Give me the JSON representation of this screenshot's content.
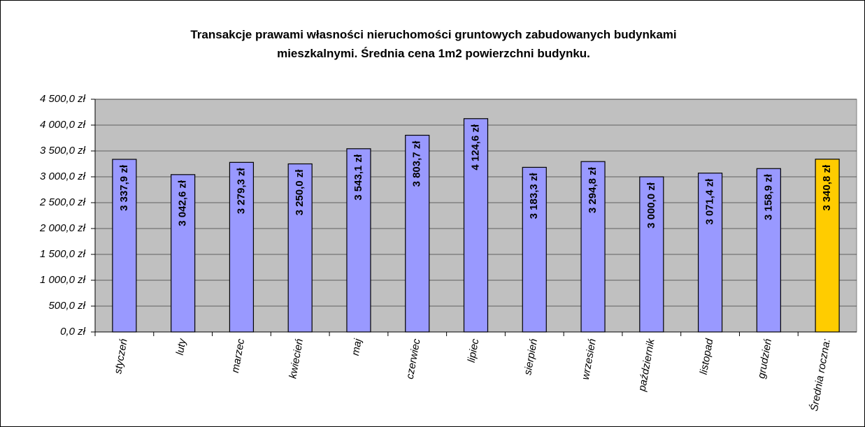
{
  "chart_data": {
    "type": "bar",
    "title": "Transakcje prawami własności nieruchomości gruntowych zabudowanych budynkami mieszkalnymi. Średnia cena 1m2 powierzchni budynku.",
    "categories": [
      "styczeń",
      "luty",
      "marzec",
      "kwiecień",
      "maj",
      "czerwiec",
      "lipiec",
      "sierpień",
      "wrzesień",
      "październik",
      "listopad",
      "grudzień",
      "Średnia roczna:"
    ],
    "values": [
      3337.9,
      3042.6,
      3279.3,
      3250.0,
      3543.1,
      3803.7,
      4124.6,
      3183.3,
      3294.8,
      3000.0,
      3071.4,
      3158.9,
      3340.8
    ],
    "value_labels": [
      "3 337,9 zł",
      "3 042,6 zł",
      "3 279,3 zł",
      "3 250,0 zł",
      "3 543,1 zł",
      "3 803,7 zł",
      "4 124,6 zł",
      "3 183,3 zł",
      "3 294,8 zł",
      "3 000,0 zł",
      "3 071,4 zł",
      "3 158,9 zł",
      "3 340,8 zł"
    ],
    "colors": [
      "#9999ff",
      "#9999ff",
      "#9999ff",
      "#9999ff",
      "#9999ff",
      "#9999ff",
      "#9999ff",
      "#9999ff",
      "#9999ff",
      "#9999ff",
      "#9999ff",
      "#9999ff",
      "#ffcc00"
    ],
    "ylim": [
      0,
      4500
    ],
    "yticks": [
      {
        "value": 0,
        "label": "0,0 zł"
      },
      {
        "value": 500,
        "label": "500,0 zł"
      },
      {
        "value": 1000,
        "label": "1 000,0 zł"
      },
      {
        "value": 1500,
        "label": "1 500,0 zł"
      },
      {
        "value": 2000,
        "label": "2 000,0 zł"
      },
      {
        "value": 2500,
        "label": "2 500,0 zł"
      },
      {
        "value": 3000,
        "label": "3 000,0 zł"
      },
      {
        "value": 3500,
        "label": "3 500,0 zł"
      },
      {
        "value": 4000,
        "label": "4 000,0 zł"
      },
      {
        "value": 4500,
        "label": "4 500,0 zł"
      }
    ],
    "grid": true
  }
}
